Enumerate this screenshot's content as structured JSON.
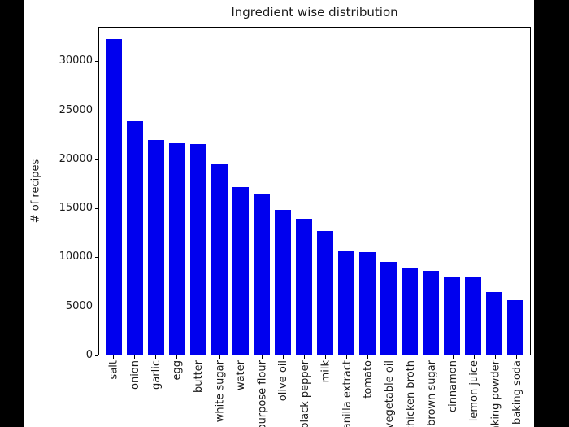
{
  "window": {
    "background_color": "#000000",
    "figure_background_color": "#ffffff"
  },
  "chart_data": {
    "type": "bar",
    "title": "Ingredient wise distribution",
    "xlabel": "",
    "ylabel": "# of recipes",
    "categories": [
      "salt",
      "onion",
      "garlic",
      "egg",
      "butter",
      "white sugar",
      "water",
      "all-purpose flour",
      "olive oil",
      "black pepper",
      "milk",
      "vanilla extract",
      "tomato",
      "vegetable oil",
      "chicken broth",
      "brown sugar",
      "cinnamon",
      "lemon juice",
      "baking powder",
      "baking soda"
    ],
    "values": [
      32300,
      23900,
      22000,
      21700,
      21600,
      19500,
      17200,
      16500,
      14800,
      13900,
      12700,
      10700,
      10500,
      9500,
      8800,
      8600,
      8000,
      7900,
      6400,
      5600
    ],
    "bar_color": "#0000ee",
    "axis_color": "#000000",
    "yticks": [
      0,
      5000,
      10000,
      15000,
      20000,
      25000,
      30000
    ],
    "ylim": [
      0,
      33500
    ],
    "grid": false,
    "legend": null,
    "x_tick_label_rotation_deg": 90
  }
}
